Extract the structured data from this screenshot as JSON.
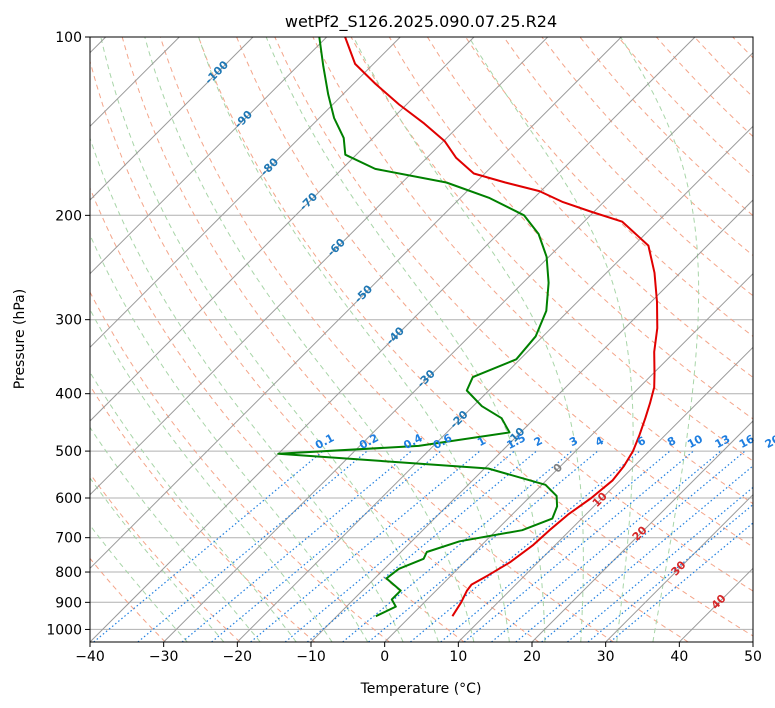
{
  "colors": {
    "temperature": "#e00000",
    "dewpoint": "#008000",
    "isotherm": "#9a9a9a",
    "isobar": "#b0b0b0",
    "dry_adiabat": "#f4a58a",
    "moist_adiabat": "#a8d5a8",
    "mixing_ratio": "#1e7ee0",
    "label_blue": "#1f77b4",
    "label_red": "#d62728",
    "label_gray": "#808080"
  },
  "chart_data": {
    "type": "skew-t",
    "title": "wetPf2_S126.2025.090.07.25.R24",
    "xlabel": "Temperature (°C)",
    "ylabel": "Pressure (hPa)",
    "xlim": [
      -40,
      50
    ],
    "ylim": [
      1050,
      100
    ],
    "x_ticks": [
      -40,
      -30,
      -20,
      -10,
      0,
      10,
      20,
      30,
      40,
      50
    ],
    "y_ticks": [
      100,
      200,
      300,
      400,
      500,
      600,
      700,
      800,
      900,
      1000
    ],
    "grid": true,
    "isotherm_values": [
      -120,
      -110,
      -100,
      -90,
      -80,
      -70,
      -60,
      -50,
      -40,
      -30,
      -20,
      -10,
      0,
      10,
      20,
      30,
      40,
      50
    ],
    "isotherm_labels": [
      {
        "text": "-100",
        "t": -100,
        "p": 115
      },
      {
        "text": "-90",
        "t": -90,
        "p": 138
      },
      {
        "text": "-80",
        "t": -80,
        "p": 166
      },
      {
        "text": "-70",
        "t": -70,
        "p": 190
      },
      {
        "text": "-60",
        "t": -60,
        "p": 227
      },
      {
        "text": "-50",
        "t": -50,
        "p": 272
      },
      {
        "text": "-40",
        "t": -40,
        "p": 320
      },
      {
        "text": "-30",
        "t": -30,
        "p": 378
      },
      {
        "text": "-20",
        "t": -20,
        "p": 443
      },
      {
        "text": "-10",
        "t": -10,
        "p": 473
      },
      {
        "text": "0",
        "t": 0,
        "p": 535
      },
      {
        "text": "10",
        "t": 10,
        "p": 605
      },
      {
        "text": "20",
        "t": 20,
        "p": 690
      },
      {
        "text": "30",
        "t": 30,
        "p": 790
      },
      {
        "text": "40",
        "t": 40,
        "p": 900
      }
    ],
    "mixing_ratio_lines": [
      "0.1",
      "0.2",
      "0.4",
      "0.6",
      "1",
      "1.5",
      "2",
      "3",
      "4",
      "6",
      "8",
      "10",
      "13",
      "16",
      "20",
      "25",
      "30",
      "36"
    ],
    "mixing_ratio_base_temps": [
      -39.5,
      -33.5,
      -27.5,
      -23.5,
      -18.2,
      -13.5,
      -10.5,
      -5.7,
      -2.2,
      3.5,
      7.6,
      10.8,
      14.5,
      17.8,
      21.3,
      24.8,
      27.6,
      30.6
    ],
    "dry_adiabat_thetas": [
      230,
      240,
      250,
      260,
      270,
      280,
      290,
      300,
      310,
      320,
      330,
      340,
      350,
      360,
      370,
      380,
      390,
      400,
      410,
      420,
      430,
      440,
      450,
      460,
      470,
      480
    ],
    "moist_adiabat_base_temps": [
      -30,
      -25,
      -20,
      -15,
      -10,
      -5,
      0,
      5,
      10,
      15,
      20,
      25,
      30,
      35
    ],
    "series": [
      {
        "kind": "temperature",
        "points": [
          [
            5.7,
            950
          ],
          [
            5.0,
            900
          ],
          [
            4.2,
            860
          ],
          [
            4.0,
            840
          ],
          [
            5.0,
            810
          ],
          [
            6.2,
            770
          ],
          [
            7.0,
            720
          ],
          [
            7.2,
            680
          ],
          [
            7.6,
            640
          ],
          [
            8.5,
            600
          ],
          [
            9.0,
            560
          ],
          [
            8.6,
            530
          ],
          [
            7.8,
            500
          ],
          [
            6.5,
            470
          ],
          [
            5.0,
            440
          ],
          [
            3.6,
            415
          ],
          [
            2.0,
            390
          ],
          [
            0.2,
            370
          ],
          [
            -2.8,
            340
          ],
          [
            -5.6,
            310
          ],
          [
            -9.2,
            280
          ],
          [
            -13.5,
            250
          ],
          [
            -18,
            225
          ],
          [
            -24.8,
            205
          ],
          [
            -30.5,
            197
          ],
          [
            -35.5,
            190
          ],
          [
            -40.2,
            182
          ],
          [
            -46,
            176
          ],
          [
            -51.5,
            170
          ],
          [
            -56,
            160
          ],
          [
            -59.8,
            150
          ],
          [
            -65,
            140
          ],
          [
            -71,
            130
          ],
          [
            -77,
            120
          ],
          [
            -82.5,
            111
          ],
          [
            -87.5,
            100
          ]
        ]
      },
      {
        "kind": "dewpoint",
        "points": [
          [
            -4.7,
            950
          ],
          [
            -3.3,
            915
          ],
          [
            -4.8,
            890
          ],
          [
            -4.8,
            860
          ],
          [
            -8.4,
            820
          ],
          [
            -8.0,
            790
          ],
          [
            -6.0,
            760
          ],
          [
            -6.5,
            740
          ],
          [
            -3.5,
            710
          ],
          [
            3.5,
            680
          ],
          [
            6.0,
            650
          ],
          [
            5.0,
            620
          ],
          [
            3.5,
            595
          ],
          [
            0.5,
            570
          ],
          [
            -9.5,
            535
          ],
          [
            -40.0,
            505
          ],
          [
            -22.0,
            490
          ],
          [
            -11.5,
            465
          ],
          [
            -14.5,
            440
          ],
          [
            -18.8,
            420
          ],
          [
            -23.0,
            395
          ],
          [
            -24.0,
            375
          ],
          [
            -20.5,
            350
          ],
          [
            -21.0,
            320
          ],
          [
            -23.0,
            290
          ],
          [
            -26.5,
            260
          ],
          [
            -30.3,
            235
          ],
          [
            -34.5,
            215
          ],
          [
            -39.0,
            200
          ],
          [
            -46.0,
            187
          ],
          [
            -54.0,
            176
          ],
          [
            -65.5,
            167
          ],
          [
            -71.5,
            158
          ],
          [
            -74.0,
            148
          ],
          [
            -78.0,
            137
          ],
          [
            -82.0,
            125
          ],
          [
            -86.5,
            112
          ],
          [
            -91.0,
            100
          ]
        ]
      }
    ]
  }
}
